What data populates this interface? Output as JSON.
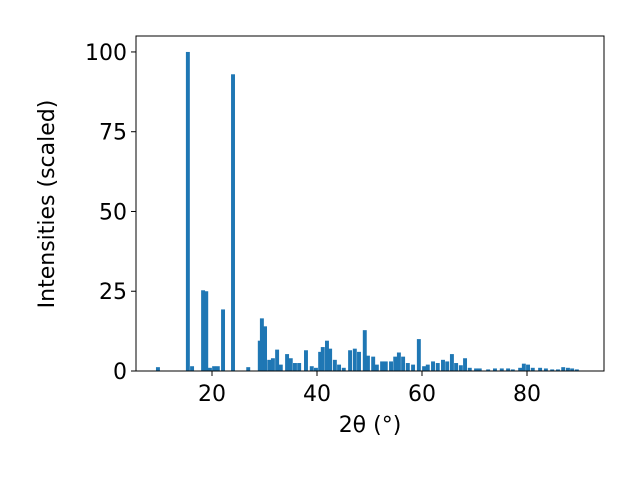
{
  "chart_data": {
    "type": "bar",
    "x_label": "2θ (°)",
    "y_label": "Intensities (scaled)",
    "x": [
      9.7,
      15.4,
      16.2,
      18.3,
      18.9,
      19.6,
      20.4,
      21.1,
      22.1,
      24.0,
      26.9,
      29.1,
      29.5,
      30.1,
      30.9,
      31.6,
      32.4,
      33.1,
      34.3,
      35.0,
      35.8,
      36.6,
      37.9,
      39.0,
      39.8,
      40.6,
      41.1,
      41.9,
      42.5,
      43.4,
      44.2,
      45.1,
      46.3,
      47.2,
      48.0,
      49.1,
      49.7,
      50.7,
      51.4,
      52.4,
      53.1,
      54.1,
      54.9,
      55.6,
      56.4,
      57.3,
      58.3,
      59.4,
      60.4,
      61.1,
      62.1,
      63.0,
      64.0,
      64.8,
      65.7,
      66.5,
      67.4,
      68.2,
      69.1,
      70.3,
      71.0,
      72.6,
      73.9,
      75.2,
      76.4,
      77.3,
      78.7,
      79.4,
      80.2,
      81.1,
      82.5,
      83.6,
      84.8,
      85.9,
      86.9,
      87.8,
      88.6,
      89.5
    ],
    "values": [
      1.2,
      100,
      1.5,
      25.3,
      25,
      1,
      1.5,
      1.5,
      19.3,
      93,
      1.2,
      9.5,
      16.5,
      14,
      3.5,
      4,
      6.7,
      2,
      5.3,
      4,
      2.5,
      2.5,
      6.5,
      1.5,
      1,
      6,
      7.5,
      9.5,
      7,
      3.5,
      2,
      1,
      6.5,
      7,
      6,
      12.8,
      4.8,
      4.5,
      2,
      3,
      3,
      3,
      4.5,
      5.8,
      4.5,
      2.5,
      2,
      10,
      1.5,
      2,
      3,
      2.5,
      3.5,
      3,
      5.3,
      2.5,
      1.8,
      4,
      1,
      0.8,
      0.8,
      0.5,
      0.8,
      0.8,
      0.8,
      0.5,
      1,
      2.3,
      2,
      1,
      1,
      0.8,
      0.5,
      0.5,
      1.2,
      1,
      0.8,
      0.5
    ],
    "color": "#1f77b4",
    "xlim": [
      5.52,
      94.67
    ],
    "ylim": [
      0,
      105
    ],
    "xticks": [
      20,
      40,
      60,
      80
    ],
    "yticks": [
      0,
      25,
      50,
      75,
      100
    ]
  }
}
